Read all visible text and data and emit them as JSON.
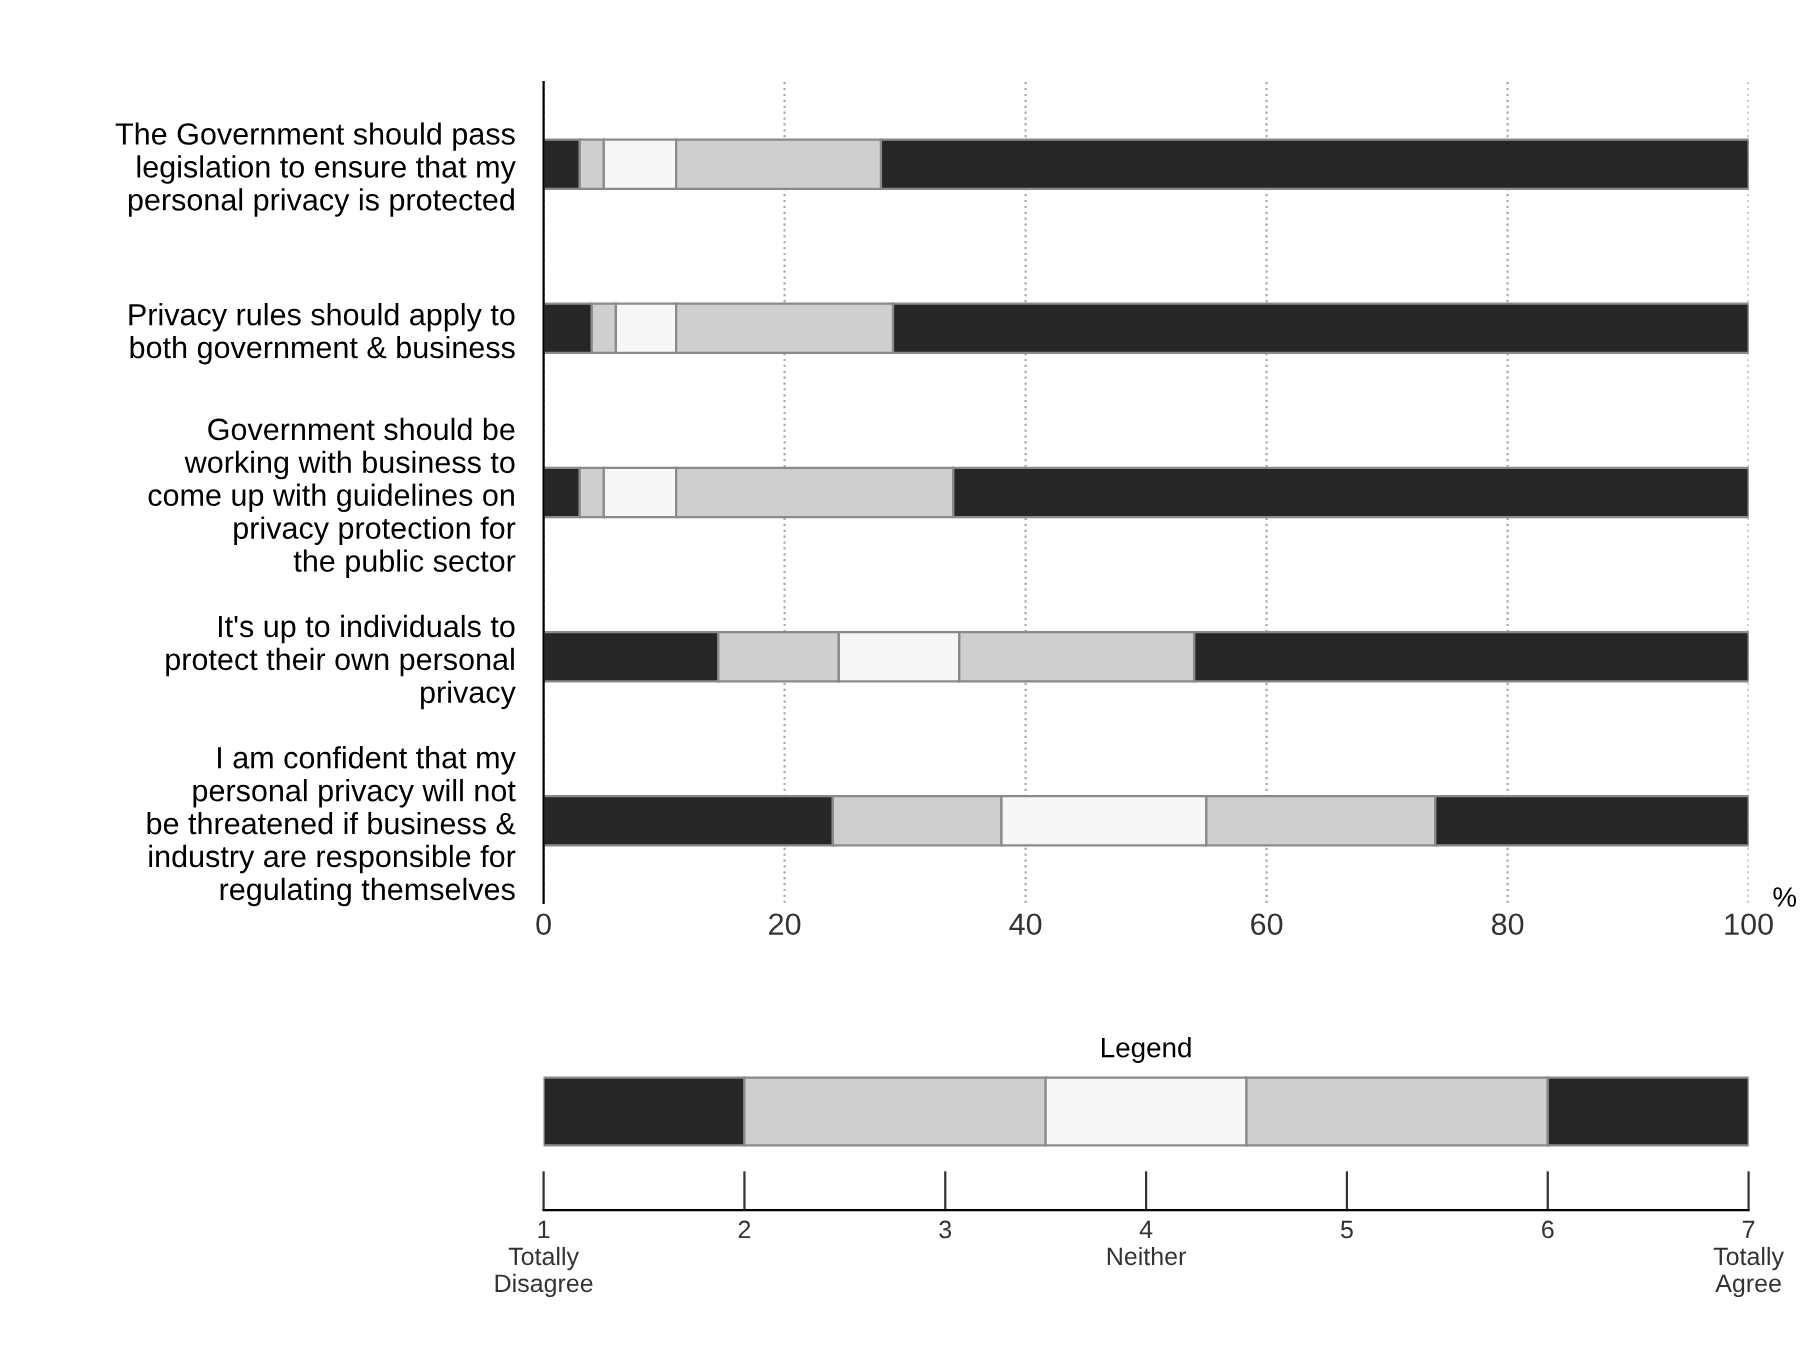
{
  "chart_data": [
    {
      "type": "bar",
      "orientation": "horizontal",
      "stacked": true,
      "categories": [
        "The Government should pass\nlegislation to ensure that my\npersonal privacy is protected",
        "Privacy rules should apply to\nboth government & business",
        "Government should be\nworking with business to\ncome up with guidelines on\nprivacy protection for\nthe public sector",
        "It's up to individuals to\nprotect their own personal\nprivacy",
        "I am confident that my\npersonal privacy will not\nbe threatened if business &\nindustry are responsible for\nregulating themselves"
      ],
      "series": [
        {
          "color": "#262626",
          "values": [
            3,
            4,
            3,
            14.5,
            24
          ]
        },
        {
          "color": "#cfcfcf",
          "values": [
            2,
            2,
            2,
            10,
            14
          ]
        },
        {
          "color": "#f7f7f7",
          "values": [
            6,
            5,
            6,
            10,
            17
          ]
        },
        {
          "color": "#cfcfcf",
          "values": [
            17,
            18,
            23,
            19.5,
            19
          ]
        },
        {
          "color": "#262626",
          "values": [
            72,
            71,
            66,
            46,
            26
          ]
        }
      ],
      "xlim": [
        0,
        100
      ],
      "xticks": [
        0,
        20,
        40,
        60,
        80,
        100
      ],
      "xlabel": "%",
      "grid": "x"
    },
    {
      "type": "bar",
      "orientation": "horizontal",
      "stacked": true,
      "title": "Legend",
      "categories": [
        null
      ],
      "series": [
        {
          "color": "#262626",
          "values": [
            1
          ],
          "base": [
            1
          ]
        },
        {
          "color": "#cfcfcf",
          "values": [
            1.5
          ],
          "base": [
            2
          ]
        },
        {
          "color": "#f7f7f7",
          "values": [
            1
          ],
          "base": [
            3.5
          ]
        },
        {
          "color": "#cfcfcf",
          "values": [
            1.5
          ],
          "base": [
            4.5
          ]
        },
        {
          "color": "#262626",
          "values": [
            1
          ],
          "base": [
            6
          ]
        }
      ],
      "xlim": [
        1,
        7
      ],
      "xticks": [
        {
          "value": 1,
          "label": "1\nTotally\nDisagree"
        },
        2,
        3,
        {
          "value": 4,
          "label": "4\nNeither"
        },
        5,
        6,
        {
          "value": 7,
          "label": "7\nTotally\nAgree"
        }
      ],
      "tick_labels": "x"
    }
  ]
}
